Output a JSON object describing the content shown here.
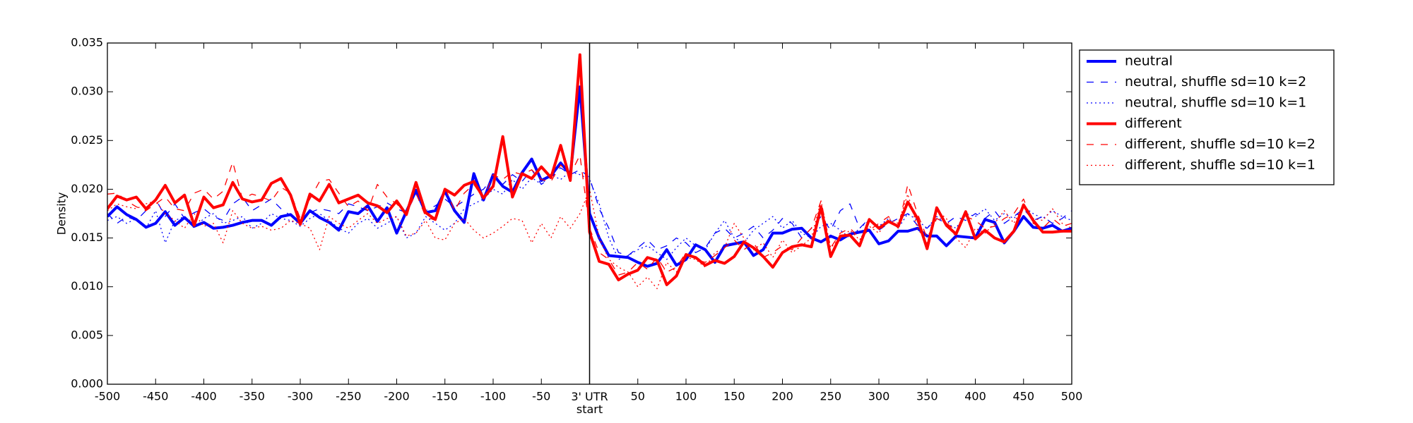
{
  "chart_data": {
    "type": "line",
    "ylabel": "Density",
    "x": [
      -500,
      -490,
      -480,
      -470,
      -460,
      -450,
      -440,
      -430,
      -420,
      -410,
      -400,
      -390,
      -380,
      -370,
      -360,
      -350,
      -340,
      -330,
      -320,
      -310,
      -300,
      -290,
      -280,
      -270,
      -260,
      -250,
      -240,
      -230,
      -220,
      -210,
      -200,
      -190,
      -180,
      -170,
      -160,
      -150,
      -140,
      -130,
      -120,
      -110,
      -100,
      -90,
      -80,
      -70,
      -60,
      -50,
      -40,
      -30,
      -20,
      -10,
      0,
      10,
      20,
      30,
      40,
      50,
      60,
      70,
      80,
      90,
      100,
      110,
      120,
      130,
      140,
      150,
      160,
      170,
      180,
      190,
      200,
      210,
      220,
      230,
      240,
      250,
      260,
      270,
      280,
      290,
      300,
      310,
      320,
      330,
      340,
      350,
      360,
      370,
      380,
      390,
      400,
      410,
      420,
      430,
      440,
      450,
      460,
      470,
      480,
      490,
      500
    ],
    "xlim": [
      -500,
      500
    ],
    "xticks": [
      -500,
      -450,
      -400,
      -350,
      -300,
      -250,
      -200,
      -150,
      -100,
      -50,
      {
        "value": 0,
        "label": "3' UTR\nstart"
      },
      50,
      100,
      150,
      200,
      250,
      300,
      350,
      400,
      450,
      500
    ],
    "ylim": [
      0,
      0.035
    ],
    "yticks": [
      {
        "value": 0,
        "label": "0.000"
      },
      0.005,
      {
        "value": 0.01,
        "label": "0.010"
      },
      0.015,
      {
        "value": 0.02,
        "label": "0.020"
      },
      0.025,
      {
        "value": 0.03,
        "label": "0.030"
      },
      0.035
    ],
    "vline": 0,
    "legend": "outside upper right",
    "series": [
      {
        "name": "neutral",
        "color": "#0000ff",
        "style": "solid",
        "width": 4,
        "values": [
          0.0172,
          0.0182,
          0.0174,
          0.0169,
          0.0161,
          0.0165,
          0.0177,
          0.0163,
          0.0171,
          0.0162,
          0.0166,
          0.016,
          0.0161,
          0.0163,
          0.0166,
          0.0168,
          0.0168,
          0.0163,
          0.0172,
          0.0174,
          0.0165,
          0.0178,
          0.0171,
          0.0166,
          0.0158,
          0.0177,
          0.0175,
          0.0183,
          0.0167,
          0.0181,
          0.0155,
          0.0177,
          0.0199,
          0.0176,
          0.0178,
          0.0198,
          0.0178,
          0.0166,
          0.0216,
          0.0189,
          0.0215,
          0.0203,
          0.0197,
          0.0217,
          0.0231,
          0.0209,
          0.0214,
          0.0227,
          0.0215,
          0.0305,
          0.0175,
          0.015,
          0.0132,
          0.0131,
          0.013,
          0.0125,
          0.0121,
          0.0124,
          0.0138,
          0.0122,
          0.0128,
          0.0143,
          0.0138,
          0.0125,
          0.0142,
          0.0144,
          0.0146,
          0.0132,
          0.0138,
          0.0155,
          0.0155,
          0.0159,
          0.016,
          0.015,
          0.0146,
          0.0152,
          0.0148,
          0.0154,
          0.0156,
          0.0158,
          0.0144,
          0.0147,
          0.0157,
          0.0157,
          0.016,
          0.0152,
          0.0152,
          0.0142,
          0.0152,
          0.0151,
          0.015,
          0.0169,
          0.0166,
          0.0145,
          0.0157,
          0.0172,
          0.0161,
          0.016,
          0.0163,
          0.0157,
          0.016
        ]
      },
      {
        "name": "neutral, shuffle sd=10 k=2",
        "color": "#0000ff",
        "style": "dashed",
        "width": 1.3,
        "values": [
          0.0175,
          0.0165,
          0.0172,
          0.0168,
          0.0178,
          0.019,
          0.0172,
          0.0185,
          0.017,
          0.0176,
          0.018,
          0.0172,
          0.0168,
          0.0185,
          0.0192,
          0.0178,
          0.0184,
          0.019,
          0.018,
          0.0173,
          0.0168,
          0.0176,
          0.018,
          0.0178,
          0.0175,
          0.0185,
          0.0182,
          0.0178,
          0.0182,
          0.0186,
          0.018,
          0.0176,
          0.0195,
          0.0178,
          0.0183,
          0.019,
          0.0182,
          0.0188,
          0.0195,
          0.02,
          0.0212,
          0.0205,
          0.0215,
          0.0208,
          0.022,
          0.0205,
          0.0212,
          0.0222,
          0.0215,
          0.022,
          0.0212,
          0.018,
          0.016,
          0.0135,
          0.0132,
          0.014,
          0.0148,
          0.0138,
          0.0142,
          0.015,
          0.0145,
          0.0135,
          0.014,
          0.0155,
          0.016,
          0.015,
          0.0155,
          0.0162,
          0.015,
          0.0158,
          0.017,
          0.0165,
          0.015,
          0.016,
          0.0172,
          0.0158,
          0.0178,
          0.0185,
          0.016,
          0.017,
          0.0158,
          0.0165,
          0.017,
          0.0175,
          0.0163,
          0.016,
          0.017,
          0.0165,
          0.0172,
          0.0168,
          0.0175,
          0.017,
          0.0178,
          0.0165,
          0.0172,
          0.018,
          0.0168,
          0.0172,
          0.0165,
          0.017,
          0.0178
        ]
      },
      {
        "name": "neutral, shuffle sd=10 k=1",
        "color": "#0000ff",
        "style": "dotted",
        "width": 1.3,
        "values": [
          0.0168,
          0.0172,
          0.0165,
          0.017,
          0.016,
          0.0178,
          0.0145,
          0.0168,
          0.0172,
          0.016,
          0.017,
          0.0175,
          0.0165,
          0.0168,
          0.0172,
          0.016,
          0.0165,
          0.0175,
          0.017,
          0.0168,
          0.0162,
          0.017,
          0.0175,
          0.0168,
          0.016,
          0.0155,
          0.0165,
          0.017,
          0.016,
          0.0165,
          0.0172,
          0.015,
          0.0155,
          0.0172,
          0.0165,
          0.0158,
          0.0165,
          0.018,
          0.0185,
          0.019,
          0.02,
          0.0195,
          0.021,
          0.02,
          0.0212,
          0.0205,
          0.0215,
          0.021,
          0.0218,
          0.0215,
          0.021,
          0.0185,
          0.015,
          0.0128,
          0.0132,
          0.0138,
          0.0142,
          0.0135,
          0.0128,
          0.014,
          0.015,
          0.0142,
          0.0138,
          0.0155,
          0.0168,
          0.015,
          0.0145,
          0.0158,
          0.0165,
          0.0172,
          0.016,
          0.0168,
          0.0155,
          0.015,
          0.0162,
          0.0165,
          0.0158,
          0.015,
          0.016,
          0.0168,
          0.0162,
          0.017,
          0.016,
          0.0175,
          0.0168,
          0.016,
          0.0172,
          0.0165,
          0.016,
          0.0175,
          0.0172,
          0.018,
          0.0168,
          0.0175,
          0.017,
          0.0182,
          0.0175,
          0.017,
          0.0178,
          0.0172,
          0.0168
        ]
      },
      {
        "name": "different",
        "color": "#ff0000",
        "style": "solid",
        "width": 4,
        "values": [
          0.018,
          0.0193,
          0.0189,
          0.0192,
          0.018,
          0.0189,
          0.0204,
          0.0186,
          0.0194,
          0.0163,
          0.0192,
          0.0181,
          0.0184,
          0.0207,
          0.019,
          0.0187,
          0.0189,
          0.0206,
          0.0211,
          0.0194,
          0.0164,
          0.0195,
          0.0188,
          0.0205,
          0.0186,
          0.019,
          0.0194,
          0.0186,
          0.0183,
          0.0176,
          0.0188,
          0.0174,
          0.0207,
          0.0176,
          0.0169,
          0.02,
          0.0194,
          0.0204,
          0.0208,
          0.0191,
          0.0203,
          0.0254,
          0.0192,
          0.0216,
          0.0211,
          0.0223,
          0.0212,
          0.0245,
          0.0209,
          0.0338,
          0.0156,
          0.0126,
          0.0123,
          0.0107,
          0.0113,
          0.0117,
          0.013,
          0.0127,
          0.0102,
          0.0111,
          0.0133,
          0.013,
          0.0122,
          0.0127,
          0.0124,
          0.0131,
          0.0146,
          0.014,
          0.0131,
          0.012,
          0.0135,
          0.0141,
          0.0143,
          0.0141,
          0.0182,
          0.0131,
          0.0152,
          0.0153,
          0.0142,
          0.0169,
          0.016,
          0.0167,
          0.0162,
          0.0187,
          0.017,
          0.0139,
          0.0181,
          0.0163,
          0.0154,
          0.0177,
          0.0149,
          0.0158,
          0.015,
          0.0146,
          0.0157,
          0.0184,
          0.0168,
          0.0156,
          0.0156,
          0.0157,
          0.0157
        ]
      },
      {
        "name": "different, shuffle sd=10 k=2",
        "color": "#ff0000",
        "style": "dashed",
        "width": 1.3,
        "values": [
          0.0195,
          0.0196,
          0.0188,
          0.0182,
          0.0178,
          0.0185,
          0.0192,
          0.018,
          0.0178,
          0.0196,
          0.02,
          0.019,
          0.0198,
          0.0228,
          0.019,
          0.0195,
          0.0192,
          0.0188,
          0.0202,
          0.0196,
          0.017,
          0.019,
          0.0208,
          0.021,
          0.0196,
          0.0182,
          0.0188,
          0.0178,
          0.0205,
          0.0192,
          0.0185,
          0.0175,
          0.0196,
          0.0172,
          0.0168,
          0.0202,
          0.0178,
          0.0196,
          0.0205,
          0.019,
          0.0215,
          0.021,
          0.0218,
          0.0215,
          0.022,
          0.021,
          0.0208,
          0.0225,
          0.0215,
          0.0235,
          0.016,
          0.0135,
          0.0128,
          0.0112,
          0.0115,
          0.0125,
          0.0118,
          0.013,
          0.0115,
          0.012,
          0.0135,
          0.0128,
          0.0125,
          0.0132,
          0.014,
          0.0148,
          0.0138,
          0.0145,
          0.013,
          0.0135,
          0.0142,
          0.0138,
          0.015,
          0.016,
          0.0188,
          0.014,
          0.0155,
          0.016,
          0.015,
          0.0158,
          0.0165,
          0.0172,
          0.016,
          0.0205,
          0.0175,
          0.015,
          0.017,
          0.0165,
          0.0158,
          0.0172,
          0.0168,
          0.016,
          0.0162,
          0.017,
          0.0175,
          0.019,
          0.0165,
          0.016,
          0.017,
          0.0162,
          0.0165
        ]
      },
      {
        "name": "different, shuffle sd=10 k=1",
        "color": "#ff0000",
        "style": "dotted",
        "width": 1.3,
        "values": [
          0.0178,
          0.0185,
          0.0182,
          0.018,
          0.0185,
          0.0188,
          0.0175,
          0.0168,
          0.016,
          0.0175,
          0.0162,
          0.0165,
          0.0145,
          0.0178,
          0.0165,
          0.016,
          0.0162,
          0.0158,
          0.016,
          0.0168,
          0.0165,
          0.016,
          0.0138,
          0.0172,
          0.0165,
          0.016,
          0.0168,
          0.0175,
          0.0165,
          0.017,
          0.0172,
          0.0152,
          0.0155,
          0.0168,
          0.015,
          0.0148,
          0.0165,
          0.017,
          0.0158,
          0.015,
          0.0155,
          0.0162,
          0.017,
          0.0168,
          0.0145,
          0.0165,
          0.015,
          0.0172,
          0.016,
          0.0175,
          0.02,
          0.015,
          0.0128,
          0.012,
          0.0115,
          0.01,
          0.011,
          0.0098,
          0.0125,
          0.0115,
          0.013,
          0.0128,
          0.012,
          0.0135,
          0.014,
          0.0165,
          0.015,
          0.0138,
          0.0145,
          0.013,
          0.0148,
          0.0135,
          0.0142,
          0.015,
          0.0188,
          0.014,
          0.015,
          0.0158,
          0.0148,
          0.0162,
          0.0155,
          0.017,
          0.0165,
          0.0195,
          0.016,
          0.0145,
          0.0178,
          0.017,
          0.015,
          0.014,
          0.016,
          0.0155,
          0.0165,
          0.0178,
          0.0165,
          0.0185,
          0.017,
          0.0168,
          0.018,
          0.0165,
          0.016
        ]
      }
    ]
  }
}
